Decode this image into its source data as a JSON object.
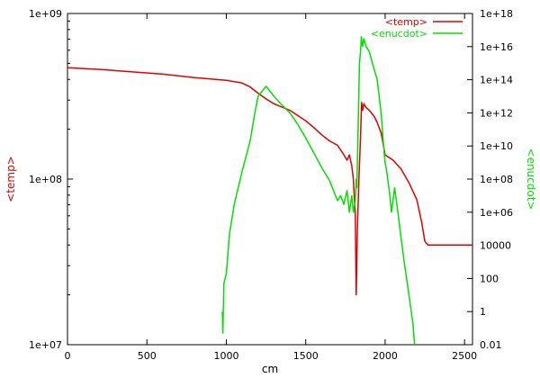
{
  "chart_data": {
    "type": "line",
    "xlabel": "cm",
    "ylabel_left": "<temp>",
    "ylabel_right": "<enucdot>",
    "xlim": [
      0,
      2550
    ],
    "ylim_left": [
      10000000,
      1000000000
    ],
    "ylim_right": [
      0.01,
      1e+18
    ],
    "y_scale": "log",
    "grid": false,
    "legend_position": "top-right",
    "x_ticks": [
      0,
      500,
      1000,
      1500,
      2000,
      2500
    ],
    "x_tick_labels": [
      "0",
      "500",
      "1000",
      "1500",
      "2000",
      "2500"
    ],
    "y_left_ticks": [
      10000000,
      100000000,
      1000000000
    ],
    "y_left_tick_labels": [
      "1e+07",
      "1e+08",
      "1e+09"
    ],
    "y_right_ticks": [
      0.01,
      1,
      100,
      10000,
      1000000.0,
      100000000.0,
      10000000000.0,
      1000000000000.0,
      100000000000000.0,
      1e+16,
      1e+18
    ],
    "y_right_tick_labels": [
      "0.01",
      "1",
      "100",
      "10000",
      "1e+06",
      "1e+08",
      "1e+10",
      "1e+12",
      "1e+14",
      "1e+16",
      "1e+18"
    ],
    "series": [
      {
        "name": "<temp>",
        "axis": "left",
        "color": "#e00000",
        "points": [
          [
            0,
            470000000
          ],
          [
            200,
            460000000
          ],
          [
            400,
            445000000
          ],
          [
            600,
            430000000
          ],
          [
            800,
            410000000
          ],
          [
            1000,
            395000000
          ],
          [
            1100,
            380000000
          ],
          [
            1150,
            360000000
          ],
          [
            1200,
            330000000
          ],
          [
            1250,
            305000000
          ],
          [
            1300,
            285000000
          ],
          [
            1400,
            260000000
          ],
          [
            1500,
            225000000
          ],
          [
            1550,
            205000000
          ],
          [
            1600,
            185000000
          ],
          [
            1650,
            170000000
          ],
          [
            1700,
            160000000
          ],
          [
            1720,
            150000000
          ],
          [
            1740,
            140000000
          ],
          [
            1760,
            130000000
          ],
          [
            1775,
            140000000
          ],
          [
            1790,
            120000000
          ],
          [
            1800,
            100000000
          ],
          [
            1812,
            60000000
          ],
          [
            1818,
            20000000
          ],
          [
            1825,
            50000000
          ],
          [
            1835,
            100000000
          ],
          [
            1845,
            180000000
          ],
          [
            1852,
            290000000
          ],
          [
            1858,
            260000000
          ],
          [
            1866,
            285000000
          ],
          [
            1880,
            270000000
          ],
          [
            1900,
            260000000
          ],
          [
            1930,
            240000000
          ],
          [
            1950,
            220000000
          ],
          [
            1975,
            190000000
          ],
          [
            2000,
            140000000
          ],
          [
            2050,
            130000000
          ],
          [
            2100,
            115000000
          ],
          [
            2150,
            95000000
          ],
          [
            2200,
            75000000
          ],
          [
            2230,
            55000000
          ],
          [
            2250,
            42000000
          ],
          [
            2270,
            40000000
          ],
          [
            2400,
            40000000
          ],
          [
            2550,
            40000000
          ]
        ]
      },
      {
        "name": "<enucdot>",
        "axis": "right",
        "color": "#00e000",
        "points": [
          [
            975,
            1
          ],
          [
            978,
            0.05
          ],
          [
            985,
            50
          ],
          [
            990,
            80
          ],
          [
            1000,
            200
          ],
          [
            1020,
            50000
          ],
          [
            1050,
            3000000.0
          ],
          [
            1100,
            300000000.0
          ],
          [
            1150,
            20000000000.0
          ],
          [
            1180,
            1000000000000.0
          ],
          [
            1200,
            10000000000000.0
          ],
          [
            1250,
            40000000000000.0
          ],
          [
            1300,
            10000000000000.0
          ],
          [
            1350,
            3000000000000.0
          ],
          [
            1400,
            1000000000000.0
          ],
          [
            1450,
            200000000000.0
          ],
          [
            1500,
            30000000000.0
          ],
          [
            1550,
            4000000000.0
          ],
          [
            1600,
            500000000.0
          ],
          [
            1650,
            80000000.0
          ],
          [
            1700,
            5000000.0
          ],
          [
            1720,
            10000000.0
          ],
          [
            1740,
            3000000.0
          ],
          [
            1760,
            20000000.0
          ],
          [
            1775,
            1000000.0
          ],
          [
            1790,
            10000000.0
          ],
          [
            1800,
            1000000.0
          ],
          [
            1812,
            5000000.0
          ],
          [
            1818,
            100000000.0
          ],
          [
            1822,
            30000000.0
          ],
          [
            1830,
            100000000000.0
          ],
          [
            1838,
            1000000000000000.0
          ],
          [
            1845,
            5000000000000000.0
          ],
          [
            1850,
            4e+16
          ],
          [
            1858,
            1e+16
          ],
          [
            1866,
            3e+16
          ],
          [
            1880,
            1e+16
          ],
          [
            1900,
            5000000000000000.0
          ],
          [
            1920,
            1000000000000000.0
          ],
          [
            1950,
            100000000000000.0
          ],
          [
            1975,
            1000000000000.0
          ],
          [
            1990,
            10000000000.0
          ],
          [
            2000,
            1000000000.0
          ],
          [
            2010,
            300000000.0
          ],
          [
            2030,
            10000000.0
          ],
          [
            2040,
            1000000.0
          ],
          [
            2060,
            30000000.0
          ],
          [
            2080,
            1000000.0
          ],
          [
            2100,
            30000
          ],
          [
            2120,
            1000
          ],
          [
            2140,
            50
          ],
          [
            2160,
            2
          ],
          [
            2175,
            0.2
          ],
          [
            2185,
            0.01
          ]
        ]
      }
    ]
  }
}
